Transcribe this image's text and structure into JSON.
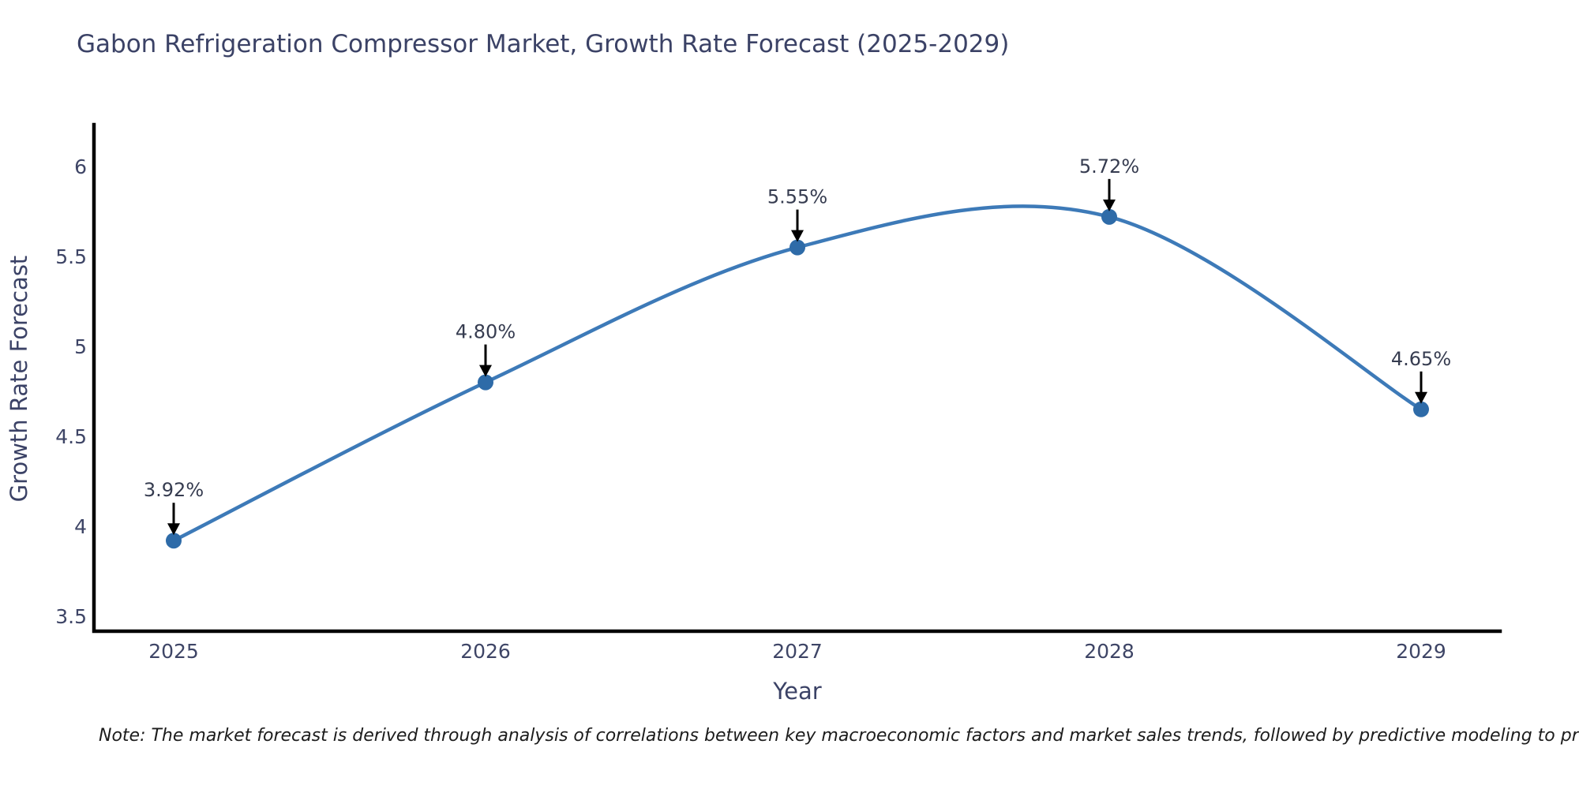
{
  "page": {
    "background": "#ffffff"
  },
  "chart_data": {
    "type": "line",
    "title": "Gabon Refrigeration Compressor Market, Growth Rate Forecast (2025-2029)",
    "xlabel": "Year",
    "ylabel": "Growth Rate Forecast",
    "x": [
      2025,
      2026,
      2027,
      2028,
      2029
    ],
    "series": [
      {
        "name": "Growth Rate Forecast",
        "values": [
          3.92,
          4.8,
          5.55,
          5.72,
          4.65
        ]
      }
    ],
    "point_labels": [
      "3.92%",
      "4.80%",
      "5.55%",
      "5.72%",
      "4.65%"
    ],
    "xtick_labels": [
      "2025",
      "2026",
      "2027",
      "2028",
      "2029"
    ],
    "yticks": [
      3.5,
      4,
      4.5,
      5,
      5.5,
      6
    ],
    "ytick_labels": [
      "3.5",
      "4",
      "4.5",
      "5",
      "5.5",
      "6"
    ],
    "xlim": [
      2024.74,
      2029.25
    ],
    "ylim": [
      3.42,
      6.23
    ],
    "line_shape": "spline",
    "grid": false,
    "legend_position": "none",
    "annotations_arrow": "down-arrow-to-point",
    "colors": {
      "line": "#3d7ab8",
      "marker": "#2e6ba8",
      "arrow": "#000000",
      "axis": "#000000",
      "title_text": "#3b4266",
      "tick_text": "#3e4566",
      "annotation_text": "#363c50",
      "note_text": "#1c1c1c"
    }
  },
  "note": "Note: The market forecast is derived through analysis of correlations between key macroeconomic factors and market sales trends, followed by predictive modeling to project future sales"
}
